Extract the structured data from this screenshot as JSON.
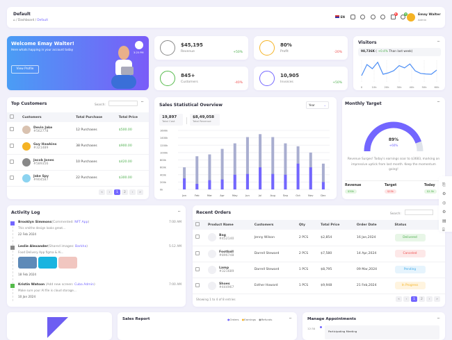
{
  "header": {
    "title": "Default",
    "breadcrumb": [
      "Dashboard",
      "Default"
    ],
    "language": "EN",
    "user_name": "Emay Walter",
    "user_role": "Admin",
    "cart_count": "0",
    "notif_count": "0"
  },
  "welcome": {
    "title": "Welcome Emay Walter!",
    "subtitle": "Here whats happing in your account today",
    "button": "View Profile",
    "time": "3:25 PM"
  },
  "stats": [
    {
      "value": "$45,195",
      "label": "Revenue",
      "change": "+50%",
      "trend": "up",
      "color": "#888888"
    },
    {
      "value": "80%",
      "label": "Profit",
      "change": "-20%",
      "trend": "down",
      "color": "#f5b324"
    },
    {
      "value": "845+",
      "label": "Customers",
      "change": "-40%",
      "trend": "down",
      "color": "#54ba4a"
    },
    {
      "value": "10,905",
      "label": "Invoices",
      "change": "+50%",
      "trend": "up",
      "color": "#7366ff"
    }
  ],
  "visitors": {
    "title": "Visitors",
    "value": "98,736K",
    "change": "+0.4%",
    "suffix": "Than last week",
    "x_ticks": [
      "0",
      "10k",
      "20k",
      "30k",
      "40k",
      "50k",
      "60k"
    ],
    "values": [
      30,
      70,
      55,
      78,
      35,
      40,
      48,
      66,
      58,
      72,
      47,
      38,
      36,
      35,
      50
    ]
  },
  "top_customers": {
    "title": "Top Customers",
    "search_label": "Search:",
    "columns": [
      "Customers",
      "Total Purchase",
      "Total Price"
    ],
    "rows": [
      {
        "name": "Devin Jake",
        "id": "#562778",
        "purchases": "12 Purchases",
        "price": "$500.00"
      },
      {
        "name": "Guy Hawkins",
        "id": "#321489",
        "purchases": "38 Purchases",
        "price": "$900.00"
      },
      {
        "name": "Jacob Jones",
        "id": "#589356",
        "purchases": "10 Purchases",
        "price": "$420.00"
      },
      {
        "name": "Jake Spy",
        "id": "#904587",
        "purchases": "22 Purchases",
        "price": "$300.00"
      }
    ],
    "pages": [
      "«",
      "‹",
      "1",
      "2",
      "›",
      "»"
    ]
  },
  "chart_data": {
    "type": "bar",
    "title": "Sales Statistical Overview",
    "select": "Year",
    "total_cost": "19,897",
    "total_cost_label": "Total Cost",
    "total_revenue": "$8,49,058",
    "total_revenue_label": "Total Revenue",
    "categories": [
      "Jan",
      "Feb",
      "Mar",
      "Apr",
      "May",
      "Jun",
      "Jul",
      "Aug",
      "Sep",
      "Oct",
      "Nov",
      "Dec"
    ],
    "y_ticks": [
      "0k",
      "200k",
      "400k",
      "600k",
      "800k",
      "1000k",
      "1200k",
      "1400k",
      "1600k"
    ],
    "ylim": [
      0,
      1600
    ],
    "series": [
      {
        "name": "Total",
        "color": "#a9aed0",
        "values": [
          600,
          900,
          950,
          1100,
          1250,
          1420,
          1500,
          1420,
          1250,
          1170,
          1000,
          700
        ]
      },
      {
        "name": "Part",
        "color": "#7366ff",
        "values": [
          300,
          150,
          250,
          270,
          400,
          420,
          600,
          420,
          400,
          700,
          600,
          200
        ]
      }
    ]
  },
  "monthly_target": {
    "title": "Monthly Target",
    "percent": "89%",
    "change": "+60%",
    "progress": 0.89,
    "text": "Revenue Surges! Today's earnings soar to $3683, marking an impressive uptick from last month. Keep the momentum going!",
    "footer": [
      {
        "label": "Revenue",
        "value": "$30k",
        "color": "g"
      },
      {
        "label": "Target",
        "value": "$15k",
        "color": "r"
      },
      {
        "label": "Today",
        "value": "$1.5k",
        "color": "g"
      }
    ]
  },
  "activity": {
    "title": "Activity Log",
    "items": [
      {
        "name": "Brooklyn Simmons",
        "action": "(Commented: ",
        "link": "NFT App",
        "desc": "This smithe design looks great...",
        "date": "22 Feb 2024",
        "time": "7:00 AM",
        "color": "#7366ff"
      },
      {
        "name": "Leslie Alexander",
        "action": "(Shared images: ",
        "link": "Barkha",
        "desc": "Food Delivery App figma & Ai...",
        "date": "18 Feb 2024",
        "time": "5:12 AM",
        "color": "#888888"
      },
      {
        "name": "Kristin Watson",
        "action": " (Add new screen: ",
        "link": "Cuba Admin",
        "desc": "Make sure your AI file is cloud storage...",
        "date": "10 Jan 2024",
        "time": "7:00 AM",
        "color": "#54ba4a"
      }
    ]
  },
  "orders": {
    "title": "Recent Orders",
    "search_label": "Search:",
    "columns": [
      "Product Name",
      "Customers",
      "Qty",
      "Total Price",
      "Order Date",
      "Status"
    ],
    "rows": [
      {
        "product": "Bag",
        "id": "#452140",
        "customer": "Jenny Wilson",
        "qty": "2 PCS",
        "price": "$2,854",
        "date": "16 Jan,2024",
        "status": "Delivered",
        "kind": "g"
      },
      {
        "product": "Football",
        "id": "#896748",
        "customer": "Darrell Steward",
        "qty": "2 PCS",
        "price": "$7,580",
        "date": "14 Apr,2024",
        "status": "Canceled",
        "kind": "r"
      },
      {
        "product": "Lamp",
        "id": "#321689",
        "customer": "Darrell Steward",
        "qty": "1 PCS",
        "price": "$8,795",
        "date": "09 Mar,2024",
        "status": "Pending",
        "kind": "b"
      },
      {
        "product": "Shoes",
        "id": "#444967",
        "customer": "Esther Howard",
        "qty": "1 PCS",
        "price": "$9,948",
        "date": "21 Feb,2024",
        "status": "In Progress",
        "kind": "y"
      }
    ],
    "footer": "Showing 1 to 4 of 8 entries",
    "pages": [
      "«",
      "‹",
      "1",
      "2",
      "›",
      "»"
    ]
  },
  "sales_report": {
    "title": "Sales Report",
    "legend": [
      "Orders",
      "Earnings",
      "Refunds"
    ]
  },
  "appointments": {
    "title": "Manage Appointments",
    "time": "12:30",
    "item": "Participating Meeting"
  }
}
